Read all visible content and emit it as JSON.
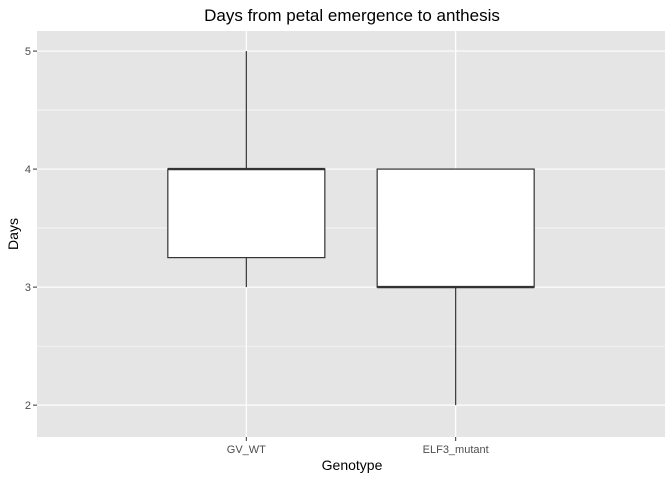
{
  "chart_data": {
    "type": "boxplot",
    "title": "Days from petal emergence to anthesis",
    "xlabel": "Genotype",
    "ylabel": "Days",
    "categories": [
      "GV_WT",
      "ELF3_mutant"
    ],
    "boxes": [
      {
        "category": "GV_WT",
        "min": 3,
        "q1": 3.25,
        "median": 4,
        "q3": 4,
        "max": 5
      },
      {
        "category": "ELF3_mutant",
        "min": 2,
        "q1": 3,
        "median": 3,
        "q3": 4,
        "max": 4
      }
    ],
    "yticks": [
      2,
      3,
      4,
      5
    ],
    "ylim": [
      1.73,
      5.17
    ],
    "grid": true,
    "legend": "none",
    "colors": {
      "panel_background": "#e5e5e5",
      "grid": "#ffffff",
      "box_fill": "#ffffff",
      "box_stroke": "#333333",
      "tick": "#333333"
    }
  }
}
